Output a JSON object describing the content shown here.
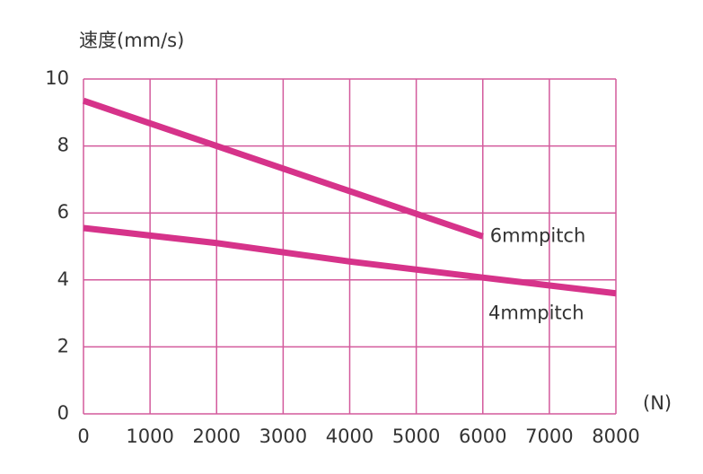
{
  "chart_data": {
    "type": "line",
    "y_label": "速度(mm/s)",
    "x_label": "(N)",
    "x": [
      0,
      2000,
      4000,
      6000,
      8000
    ],
    "series": [
      {
        "name": "6mmpitch",
        "color": "#d6338a",
        "values": [
          9.35,
          8.0,
          6.65,
          5.3,
          null
        ]
      },
      {
        "name": "4mmpitch",
        "color": "#d6338a",
        "values": [
          5.55,
          5.1,
          4.55,
          4.07,
          3.6
        ]
      }
    ],
    "xlim": [
      0,
      8000
    ],
    "xticks": [
      0,
      1000,
      2000,
      3000,
      4000,
      5000,
      6000,
      7000,
      8000
    ],
    "ylim": [
      0,
      10
    ],
    "yticks": [
      0,
      2,
      4,
      6,
      8,
      10
    ],
    "grid": true,
    "grid_color": "#d35a9c"
  }
}
